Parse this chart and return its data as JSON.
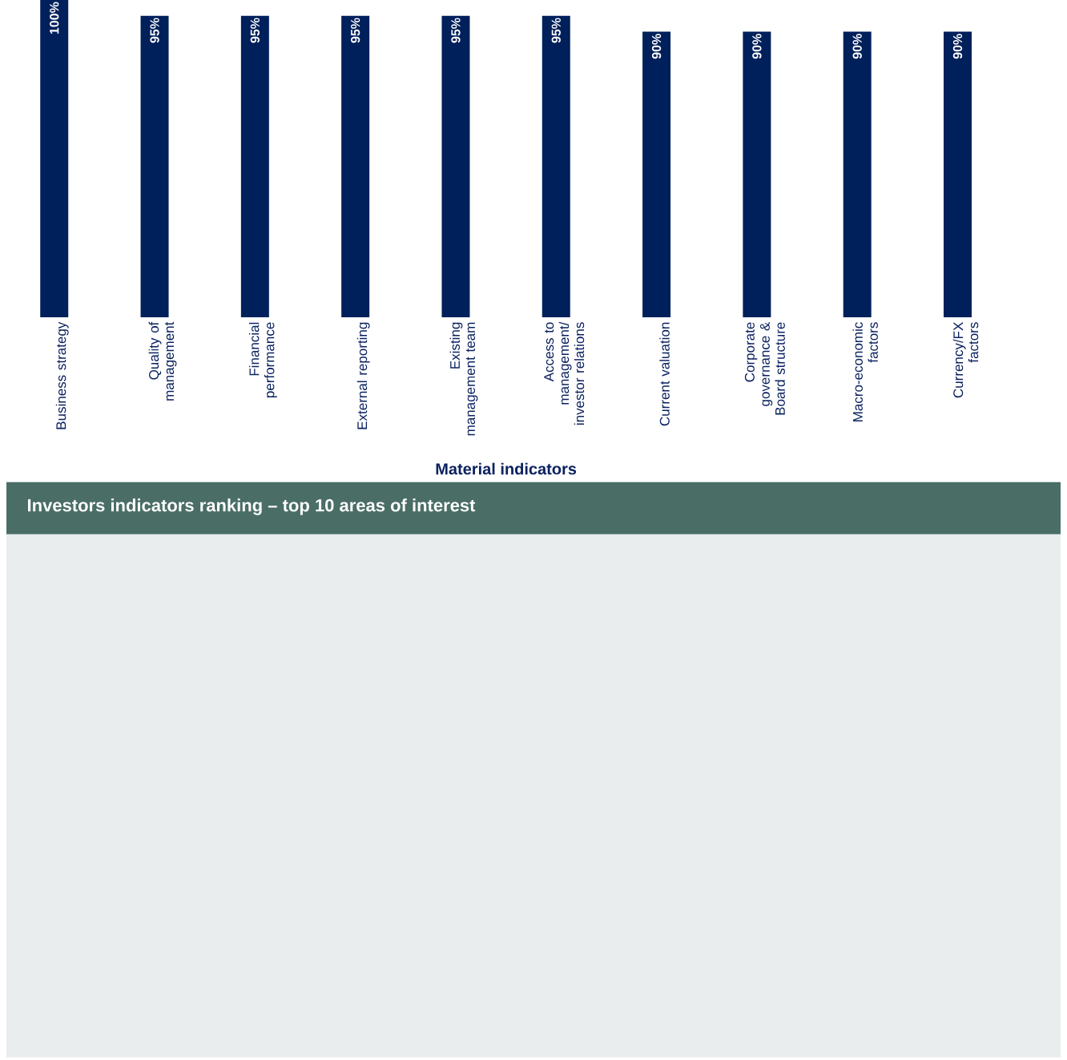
{
  "chart_data": {
    "type": "bar",
    "title": "Investors indicators ranking – top 10 areas of interest",
    "xlabel": "Material indicators",
    "categories": [
      "Business strategy",
      "Quality of management",
      "Financial performance",
      "External reporting",
      "Existing management team",
      "Access to management/ investor relations",
      "Current valuation",
      "Corporate governance & Board structure",
      "Macro-economic factors",
      "Currency/FX factors"
    ],
    "values": [
      100,
      95,
      95,
      95,
      95,
      95,
      90,
      90,
      90,
      90
    ],
    "value_labels": [
      "100%",
      "95%",
      "95%",
      "95%",
      "95%",
      "95%",
      "90%",
      "90%",
      "90%",
      "90%"
    ],
    "color": "#00205b"
  }
}
